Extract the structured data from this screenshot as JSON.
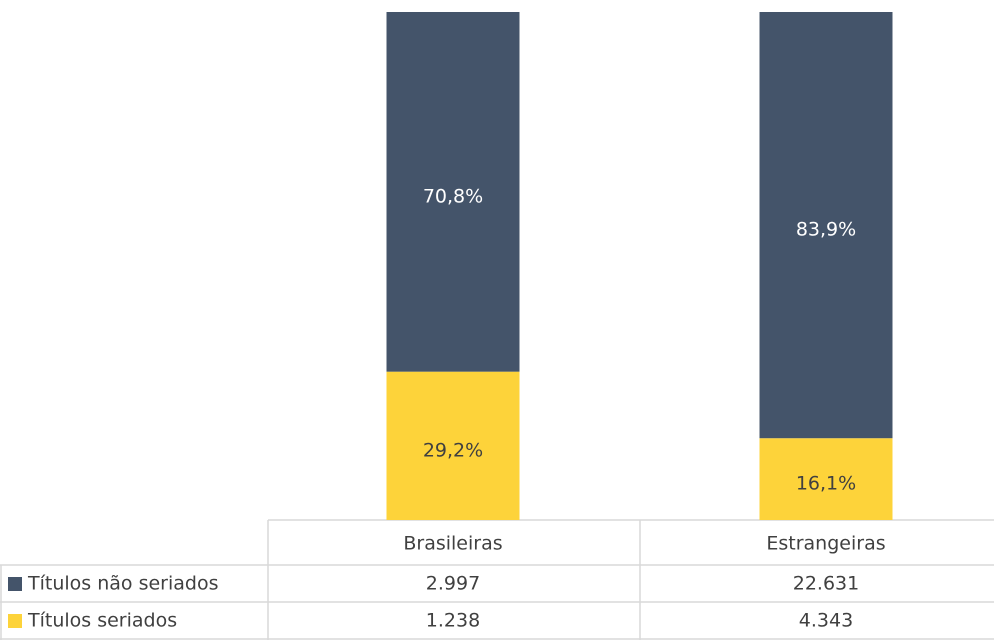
{
  "chart_data": {
    "type": "bar",
    "stacked": true,
    "categories": [
      "Brasileiras",
      "Estrangeiras"
    ],
    "ylim": [
      0,
      100
    ],
    "series": [
      {
        "name": "Títulos não seriados",
        "color": "#44546a",
        "label_color": "#ffffff",
        "values": [
          70.8,
          83.9
        ],
        "value_labels": [
          "70,8%",
          "83,9%"
        ],
        "table_values": [
          "2.997",
          "22.631"
        ]
      },
      {
        "name": "Títulos seriados",
        "color": "#fdd33a",
        "label_color": "#404040",
        "values": [
          29.2,
          16.1
        ],
        "value_labels": [
          "29,2%",
          "16,1%"
        ],
        "table_values": [
          "1.238",
          "4.343"
        ]
      }
    ]
  }
}
